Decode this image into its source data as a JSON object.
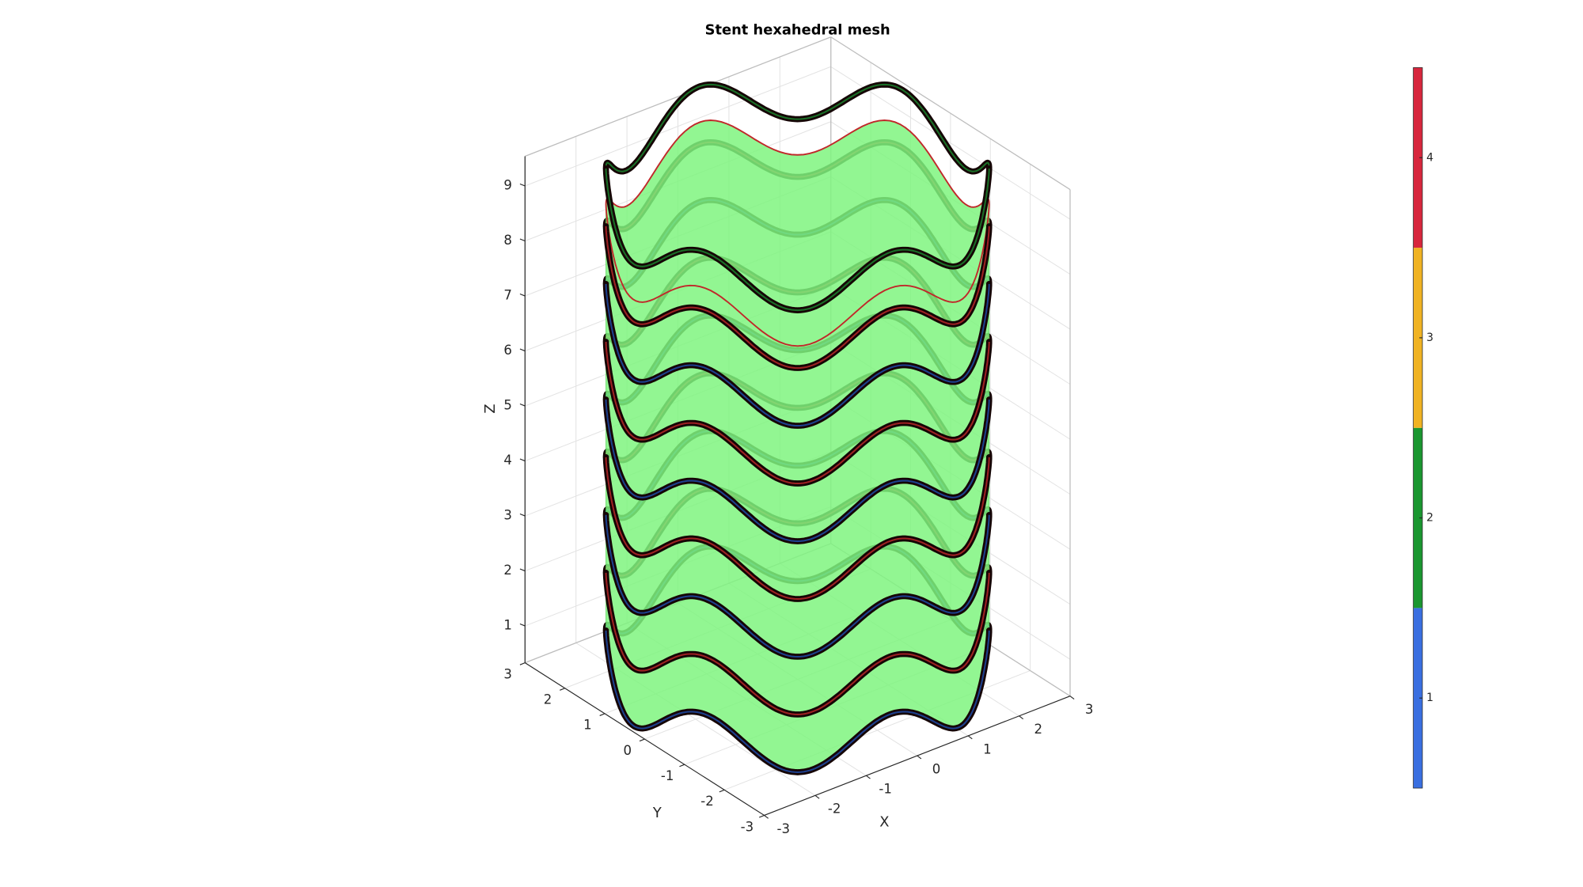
{
  "chart_data": {
    "type": "mesh3d",
    "title": "Stent hexahedral mesh",
    "xlabel": "X",
    "ylabel": "Y",
    "zlabel": "Z",
    "xlim": [
      -3,
      3
    ],
    "ylim": [
      -3,
      3
    ],
    "zlim": [
      0.33,
      9.54
    ],
    "xticks": [
      -3,
      -2,
      -1,
      0,
      1,
      2,
      3
    ],
    "yticks": [
      -3,
      -2,
      -1,
      0,
      1,
      2,
      3
    ],
    "zticks": [
      1,
      2,
      3,
      4,
      5,
      6,
      7,
      8,
      9
    ],
    "grid": true,
    "colorbar": {
      "clim": [
        0.5,
        4.5
      ],
      "ticks": [
        1,
        2,
        3,
        4
      ],
      "colors": [
        "#3a6fe0",
        "#1a9630",
        "#f0b323",
        "#d7263d"
      ]
    }
  }
}
